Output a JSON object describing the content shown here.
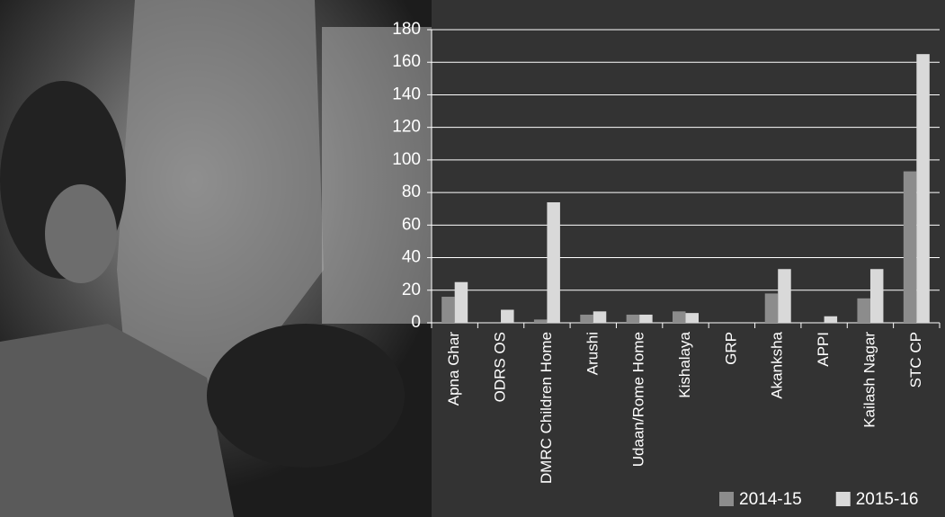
{
  "chart_data": {
    "type": "bar",
    "categories": [
      "Apna Ghar",
      "ODRS OS",
      "DMRC Children Home",
      "Arushi",
      "Udaan/Rome Home",
      "Kishalaya",
      "GRP",
      "Akanksha",
      "APPI",
      "Kailash Nagar",
      "STC CP"
    ],
    "series": [
      {
        "name": "2014-15",
        "color": "#8c8c8c",
        "values": [
          16,
          0,
          2,
          5,
          5,
          7,
          0,
          18,
          0,
          15,
          93
        ]
      },
      {
        "name": "2015-16",
        "color": "#d9d9d9",
        "values": [
          25,
          8,
          74,
          7,
          5,
          6,
          0,
          33,
          4,
          33,
          165
        ]
      }
    ],
    "ylim": [
      0,
      180
    ],
    "yticks": [
      0,
      20,
      40,
      60,
      80,
      100,
      120,
      140,
      160,
      180
    ],
    "grid": true,
    "legend": "bottom-right"
  }
}
